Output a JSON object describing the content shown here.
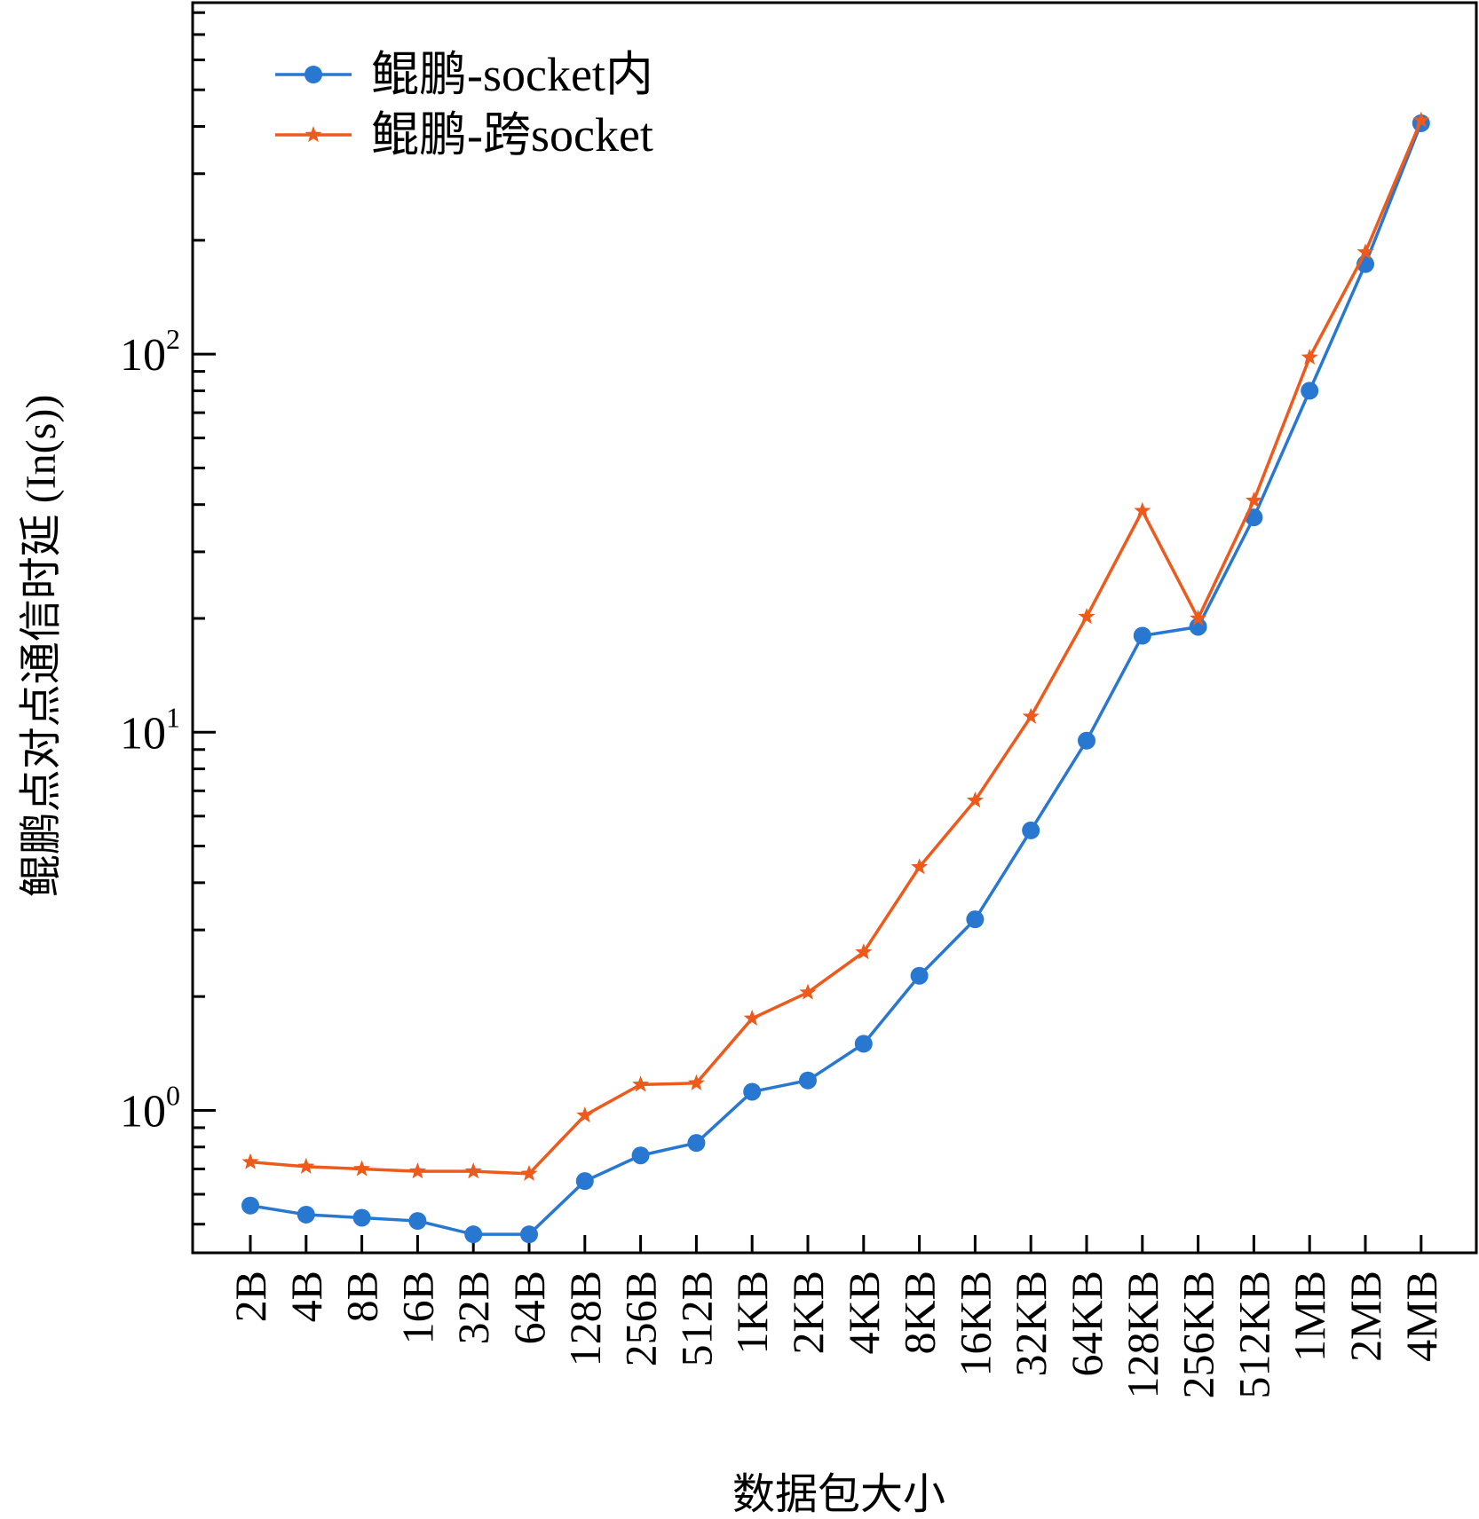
{
  "chart_data": {
    "type": "line",
    "title": "",
    "xlabel": "数据包大小",
    "ylabel": "鲲鹏点对点通信时延 (In(s))",
    "y_scale": "log",
    "ylim": [
      0.42,
      850
    ],
    "y_ticks": [
      {
        "value": 1,
        "base": "10",
        "exp": "0"
      },
      {
        "value": 10,
        "base": "10",
        "exp": "1"
      },
      {
        "value": 100,
        "base": "10",
        "exp": "2"
      }
    ],
    "categories": [
      "2B",
      "4B",
      "8B",
      "16B",
      "32B",
      "64B",
      "128B",
      "256B",
      "512B",
      "1KB",
      "2KB",
      "4KB",
      "8KB",
      "16KB",
      "32KB",
      "64KB",
      "128KB",
      "256KB",
      "512KB",
      "1MB",
      "2MB",
      "4MB"
    ],
    "series": [
      {
        "name": "鲲鹏-socket内",
        "color": "#2878d2",
        "marker": "circle",
        "values": [
          0.56,
          0.53,
          0.52,
          0.51,
          0.47,
          0.47,
          0.65,
          0.76,
          0.82,
          1.12,
          1.2,
          1.5,
          2.27,
          3.2,
          5.5,
          9.5,
          18.0,
          19.0,
          37.0,
          80.0,
          173.0,
          408.0
        ]
      },
      {
        "name": "鲲鹏-跨socket",
        "color": "#ee5a1c",
        "marker": "star",
        "values": [
          0.73,
          0.71,
          0.7,
          0.69,
          0.69,
          0.68,
          0.97,
          1.17,
          1.18,
          1.75,
          2.05,
          2.62,
          4.4,
          6.6,
          11.0,
          20.2,
          38.5,
          20.0,
          41.0,
          98.0,
          186.0,
          415.0
        ]
      }
    ],
    "legend_position": "top-left",
    "grid": false
  }
}
